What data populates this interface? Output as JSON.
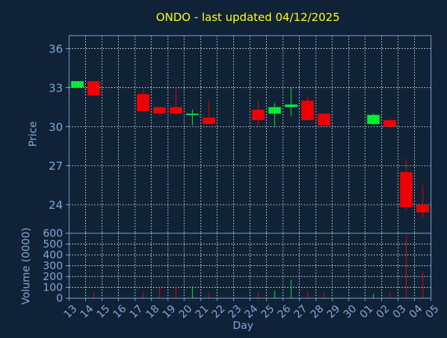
{
  "colors": {
    "background": "#0f2236",
    "axis": "#7fa8d8",
    "grid": "#ffffff",
    "title": "#ffff00",
    "up": "#00ee33",
    "down": "#ee0000",
    "label": "#111111"
  },
  "chart_data": {
    "type": "candlestick",
    "title": "ONDO - last updated 04/12/2025",
    "xlabel": "Day",
    "ylabel_price": "Price",
    "ylabel_volume": "Volume (0000)",
    "grid": true,
    "price_ylim": [
      21.8,
      37.0
    ],
    "price_ticks": [
      24,
      27,
      30,
      33,
      36
    ],
    "volume_ylim": [
      0,
      600
    ],
    "volume_ticks": [
      0,
      100,
      200,
      300,
      400,
      500,
      600
    ],
    "x_tick_labels": [
      "13",
      "14",
      "15",
      "16",
      "17",
      "18",
      "19",
      "20",
      "21",
      "22",
      "23",
      "24",
      "25",
      "26",
      "27",
      "28",
      "29",
      "30",
      "01",
      "02",
      "03",
      "04",
      "05"
    ],
    "candles": [
      {
        "day": "13",
        "open": 33.0,
        "high": 33.5,
        "low": 33.0,
        "close": 33.5,
        "volume": 0
      },
      {
        "day": "14",
        "open": 33.5,
        "high": 33.5,
        "low": 32.4,
        "close": 32.4,
        "volume": 60
      },
      {
        "day": "17",
        "open": 32.5,
        "high": 33.0,
        "low": 31.1,
        "close": 31.2,
        "volume": 60
      },
      {
        "day": "18",
        "open": 31.5,
        "high": 31.5,
        "low": 30.9,
        "close": 31.0,
        "volume": 100
      },
      {
        "day": "19",
        "open": 31.5,
        "high": 33.0,
        "low": 30.9,
        "close": 31.0,
        "volume": 120
      },
      {
        "day": "20",
        "open": 30.9,
        "high": 31.3,
        "low": 30.1,
        "close": 31.0,
        "volume": 110
      },
      {
        "day": "21",
        "open": 30.7,
        "high": 32.0,
        "low": 30.2,
        "close": 30.2,
        "volume": 50
      },
      {
        "day": "24",
        "open": 31.3,
        "high": 32.0,
        "low": 30.0,
        "close": 30.5,
        "volume": 50
      },
      {
        "day": "25",
        "open": 31.0,
        "high": 31.8,
        "low": 30.0,
        "close": 31.5,
        "volume": 70
      },
      {
        "day": "26",
        "open": 31.5,
        "high": 33.0,
        "low": 30.8,
        "close": 31.7,
        "volume": 170
      },
      {
        "day": "27",
        "open": 32.0,
        "high": 32.3,
        "low": 30.5,
        "close": 30.5,
        "volume": 60
      },
      {
        "day": "28",
        "open": 31.0,
        "high": 31.0,
        "low": 30.1,
        "close": 30.1,
        "volume": 50
      },
      {
        "day": "01",
        "open": 30.2,
        "high": 31.0,
        "low": 30.1,
        "close": 30.9,
        "volume": 40
      },
      {
        "day": "02",
        "open": 30.5,
        "high": 30.6,
        "low": 29.9,
        "close": 30.0,
        "volume": 50
      },
      {
        "day": "03",
        "open": 26.5,
        "high": 27.5,
        "low": 23.5,
        "close": 23.8,
        "volume": 580
      },
      {
        "day": "04",
        "open": 24.0,
        "high": 25.5,
        "low": 23.0,
        "close": 23.4,
        "volume": 240
      }
    ]
  }
}
